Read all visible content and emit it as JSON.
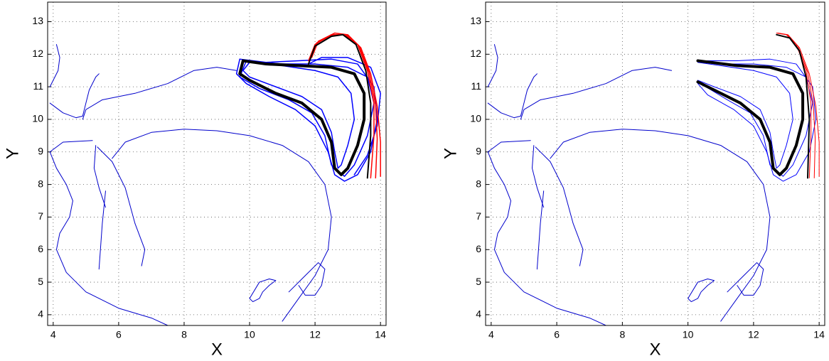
{
  "chart_data": [
    {
      "type": "line",
      "xlabel": "X",
      "ylabel": "Y",
      "xlim": [
        3.83,
        14.17
      ],
      "ylim": [
        3.67,
        13.6
      ],
      "xticks": [
        4,
        6,
        8,
        10,
        12,
        14
      ],
      "yticks": [
        4,
        5,
        6,
        7,
        8,
        9,
        10,
        11,
        12,
        13
      ],
      "grid": true,
      "series": [
        {
          "color": "#0000cc",
          "width": 1,
          "x": [
            4.1,
            4.2,
            4.15,
            4.0,
            3.9
          ],
          "y": [
            12.3,
            11.9,
            11.5,
            11.2,
            11.0
          ]
        },
        {
          "color": "#0000cc",
          "width": 1,
          "x": [
            3.9,
            4.3,
            4.7,
            4.9,
            5.0,
            5.1,
            5.3,
            5.4
          ],
          "y": [
            10.5,
            10.2,
            10.05,
            10.1,
            10.5,
            10.9,
            11.3,
            11.4
          ]
        },
        {
          "color": "#0000cc",
          "width": 1,
          "x": [
            4.9,
            5.0,
            5.5,
            6.5,
            7.5,
            8.3,
            9.0,
            9.6
          ],
          "y": [
            10.0,
            10.3,
            10.6,
            10.8,
            11.1,
            11.5,
            11.6,
            11.5
          ]
        },
        {
          "color": "#0000cc",
          "width": 1,
          "x": [
            5.8,
            6.2,
            7.0,
            8.0,
            9.0,
            10.0,
            11.0,
            11.8,
            12.3,
            12.5,
            12.4,
            12.0,
            11.5,
            11.0
          ],
          "y": [
            8.8,
            9.3,
            9.6,
            9.7,
            9.65,
            9.5,
            9.2,
            8.7,
            8.0,
            7.0,
            6.0,
            5.2,
            4.5,
            3.8
          ]
        },
        {
          "color": "#0000cc",
          "width": 1,
          "x": [
            5.2,
            4.3,
            3.9,
            4.1,
            4.4,
            4.6,
            4.5,
            4.2,
            4.1,
            4.4,
            5.0,
            6.0,
            7.0,
            7.5
          ],
          "y": [
            9.35,
            9.3,
            9.0,
            8.5,
            8.0,
            7.5,
            7.0,
            6.5,
            6.0,
            5.3,
            4.7,
            4.2,
            3.9,
            3.67
          ]
        },
        {
          "color": "#0000cc",
          "width": 1,
          "x": [
            5.3,
            5.25,
            5.4,
            5.6
          ],
          "y": [
            9.2,
            8.5,
            7.9,
            7.3
          ]
        },
        {
          "color": "#0000cc",
          "width": 1,
          "x": [
            5.35,
            5.8,
            6.2,
            6.5,
            6.8,
            6.7
          ],
          "y": [
            9.15,
            8.7,
            7.9,
            6.8,
            6.0,
            5.5
          ]
        },
        {
          "color": "#0000cc",
          "width": 1,
          "x": [
            5.6,
            5.5,
            5.4
          ],
          "y": [
            7.8,
            6.8,
            5.4
          ]
        },
        {
          "color": "#0000cc",
          "width": 1,
          "x": [
            10.0,
            10.3,
            10.6,
            10.8,
            10.6,
            10.4,
            10.3,
            10.1,
            10.0
          ],
          "y": [
            4.5,
            5.0,
            5.1,
            5.05,
            4.9,
            4.7,
            4.5,
            4.4,
            4.5
          ]
        },
        {
          "color": "#0000cc",
          "width": 1,
          "x": [
            11.2,
            11.7,
            12.1,
            12.3,
            12.2,
            12.0,
            11.7,
            11.5
          ],
          "y": [
            4.7,
            5.2,
            5.6,
            5.4,
            4.9,
            4.6,
            4.6,
            4.9
          ]
        },
        {
          "color": "#0000ff",
          "width": 1.5,
          "x": [
            9.7,
            10.5,
            11.5,
            12.5,
            13.3,
            13.8,
            13.9,
            13.7,
            13.3,
            12.9,
            12.6,
            12.4,
            12.0,
            11.4,
            10.6,
            9.9,
            9.6,
            9.7
          ],
          "y": [
            11.85,
            11.75,
            11.8,
            11.85,
            11.7,
            11.0,
            10.0,
            9.0,
            8.3,
            8.1,
            8.3,
            9.0,
            9.8,
            10.3,
            10.7,
            11.1,
            11.4,
            11.85
          ]
        },
        {
          "color": "#0000ff",
          "width": 1.5,
          "x": [
            10.0,
            11.0,
            12.0,
            12.7,
            13.1,
            13.2,
            13.0,
            12.8,
            12.7,
            12.6,
            12.5,
            12.2,
            11.6,
            10.8,
            10.0,
            9.8,
            10.0
          ],
          "y": [
            11.75,
            11.65,
            11.5,
            11.3,
            10.8,
            10.0,
            9.2,
            8.6,
            8.5,
            9.0,
            9.6,
            10.3,
            10.7,
            11.0,
            11.3,
            11.5,
            11.75
          ]
        },
        {
          "color": "#0000ff",
          "width": 1.5,
          "x": [
            9.9,
            11.0,
            12.0,
            13.0,
            13.6,
            13.8,
            13.6,
            13.2,
            12.9,
            12.5,
            12.3,
            11.9,
            11.2,
            10.3,
            9.7,
            9.9
          ],
          "y": [
            11.8,
            11.7,
            11.7,
            11.6,
            11.3,
            10.5,
            9.5,
            8.6,
            8.25,
            8.6,
            9.5,
            10.2,
            10.6,
            10.95,
            11.3,
            11.8
          ]
        },
        {
          "color": "#0000ff",
          "width": 1.5,
          "x": [
            11.8,
            12.2,
            13.0,
            13.7,
            14.0,
            13.9,
            13.6,
            13.2
          ],
          "y": [
            11.7,
            11.9,
            11.9,
            11.6,
            10.8,
            9.8,
            8.9,
            8.3
          ]
        },
        {
          "color": "#ff0000",
          "width": 1.5,
          "x": [
            11.8,
            12.0,
            12.5,
            12.9,
            13.3,
            13.6,
            13.8,
            13.8,
            13.7
          ],
          "y": [
            11.8,
            12.3,
            12.6,
            12.6,
            12.3,
            11.5,
            10.5,
            9.5,
            8.2
          ]
        },
        {
          "color": "#ff0000",
          "width": 1.5,
          "x": [
            11.9,
            12.1,
            12.6,
            13.0,
            13.4,
            13.7,
            13.9,
            14.0,
            14.0
          ],
          "y": [
            11.9,
            12.4,
            12.65,
            12.6,
            12.2,
            11.4,
            10.4,
            9.3,
            8.25
          ]
        },
        {
          "color": "#ff0000",
          "width": 1.5,
          "x": [
            11.85,
            12.05,
            12.55,
            12.95,
            13.35,
            13.65,
            13.85,
            13.9,
            13.85
          ],
          "y": [
            11.85,
            12.35,
            12.6,
            12.6,
            12.25,
            11.45,
            10.45,
            9.4,
            8.2
          ]
        },
        {
          "color": "#000000",
          "width": 4,
          "x": [
            9.8,
            10.5,
            11.5,
            12.5,
            13.2,
            13.5,
            13.5,
            13.3,
            13.0,
            12.8,
            12.6,
            12.5,
            12.2,
            11.6,
            10.8,
            10.0,
            9.7,
            9.8
          ],
          "y": [
            11.8,
            11.7,
            11.65,
            11.6,
            11.4,
            10.8,
            10.0,
            9.2,
            8.5,
            8.3,
            8.5,
            9.3,
            10.0,
            10.5,
            10.8,
            11.2,
            11.4,
            11.8
          ]
        },
        {
          "color": "#000000",
          "width": 2,
          "x": [
            11.8,
            12.0,
            12.5,
            12.85,
            13.25,
            13.55,
            13.7,
            13.7,
            13.6
          ],
          "y": [
            11.7,
            12.25,
            12.55,
            12.6,
            12.3,
            11.5,
            10.5,
            9.5,
            8.2
          ]
        }
      ]
    },
    {
      "type": "line",
      "xlabel": "X",
      "ylabel": "Y",
      "xlim": [
        3.83,
        14.17
      ],
      "ylim": [
        3.67,
        13.6
      ],
      "xticks": [
        4,
        6,
        8,
        10,
        12,
        14
      ],
      "yticks": [
        4,
        5,
        6,
        7,
        8,
        9,
        10,
        11,
        12,
        13
      ],
      "grid": true,
      "series": [
        {
          "color": "#0000cc",
          "width": 1,
          "x": [
            4.1,
            4.2,
            4.15,
            4.0,
            3.9
          ],
          "y": [
            12.3,
            11.9,
            11.5,
            11.2,
            11.0
          ]
        },
        {
          "color": "#0000cc",
          "width": 1,
          "x": [
            3.9,
            4.3,
            4.7,
            4.9,
            5.0,
            5.1,
            5.3,
            5.4
          ],
          "y": [
            10.5,
            10.2,
            10.05,
            10.1,
            10.5,
            10.9,
            11.3,
            11.4
          ]
        },
        {
          "color": "#0000cc",
          "width": 1,
          "x": [
            4.9,
            5.0,
            5.5,
            6.5,
            7.5,
            8.3,
            9.0,
            9.5
          ],
          "y": [
            10.0,
            10.3,
            10.6,
            10.8,
            11.1,
            11.5,
            11.6,
            11.5
          ]
        },
        {
          "color": "#0000cc",
          "width": 1,
          "x": [
            5.8,
            6.2,
            7.0,
            8.0,
            9.0,
            10.0,
            11.0,
            11.8,
            12.3,
            12.5,
            12.4,
            12.0,
            11.5,
            11.0
          ],
          "y": [
            8.8,
            9.3,
            9.6,
            9.7,
            9.65,
            9.5,
            9.2,
            8.7,
            8.0,
            7.0,
            6.0,
            5.2,
            4.5,
            3.8
          ]
        },
        {
          "color": "#0000cc",
          "width": 1,
          "x": [
            5.2,
            4.3,
            3.9,
            4.1,
            4.4,
            4.6,
            4.5,
            4.2,
            4.1,
            4.4,
            5.0,
            6.0,
            7.0,
            7.5
          ],
          "y": [
            9.35,
            9.3,
            9.0,
            8.5,
            8.0,
            7.5,
            7.0,
            6.5,
            6.0,
            5.3,
            4.7,
            4.2,
            3.9,
            3.67
          ]
        },
        {
          "color": "#0000cc",
          "width": 1,
          "x": [
            5.3,
            5.25,
            5.4,
            5.6
          ],
          "y": [
            9.2,
            8.5,
            7.9,
            7.3
          ]
        },
        {
          "color": "#0000cc",
          "width": 1,
          "x": [
            5.35,
            5.8,
            6.2,
            6.5,
            6.8,
            6.7
          ],
          "y": [
            9.15,
            8.7,
            7.9,
            6.8,
            6.0,
            5.5
          ]
        },
        {
          "color": "#0000cc",
          "width": 1,
          "x": [
            5.6,
            5.5,
            5.4
          ],
          "y": [
            7.8,
            6.8,
            5.4
          ]
        },
        {
          "color": "#0000cc",
          "width": 1,
          "x": [
            10.0,
            10.3,
            10.6,
            10.8,
            10.6,
            10.4,
            10.3,
            10.1,
            10.0
          ],
          "y": [
            4.5,
            5.0,
            5.1,
            5.05,
            4.9,
            4.7,
            4.5,
            4.4,
            4.5
          ]
        },
        {
          "color": "#0000cc",
          "width": 1,
          "x": [
            11.2,
            11.7,
            12.1,
            12.3,
            12.2,
            12.0,
            11.7,
            11.5
          ],
          "y": [
            4.7,
            5.2,
            5.6,
            5.4,
            4.9,
            4.6,
            4.6,
            4.9
          ]
        },
        {
          "color": "#0000ff",
          "width": 1,
          "x": [
            10.3,
            11.5,
            12.5,
            13.3,
            13.8,
            13.9,
            13.7,
            13.3,
            12.9,
            12.6,
            12.4,
            12.0,
            11.4,
            10.6,
            10.3
          ],
          "y": [
            11.8,
            11.8,
            11.85,
            11.7,
            11.0,
            10.0,
            9.0,
            8.3,
            8.1,
            8.3,
            9.0,
            9.8,
            10.3,
            10.75,
            11.1
          ]
        },
        {
          "color": "#0000ff",
          "width": 1,
          "x": [
            10.3,
            11.0,
            12.0,
            12.7,
            13.1,
            13.2,
            13.0,
            12.8,
            12.7,
            12.6,
            12.5,
            12.2,
            11.6,
            10.8,
            10.3
          ],
          "y": [
            11.75,
            11.65,
            11.5,
            11.3,
            10.8,
            10.0,
            9.2,
            8.6,
            8.5,
            9.0,
            9.6,
            10.3,
            10.7,
            11.0,
            11.2
          ]
        },
        {
          "color": "#0000ff",
          "width": 1,
          "x": [
            10.3,
            11.0,
            12.0,
            13.0,
            13.6,
            13.8,
            13.6,
            13.2,
            12.9,
            12.5,
            12.3,
            11.9,
            11.2,
            10.3
          ],
          "y": [
            11.8,
            11.7,
            11.7,
            11.6,
            11.3,
            10.5,
            9.5,
            8.6,
            8.25,
            8.6,
            9.5,
            10.2,
            10.6,
            11.15
          ]
        },
        {
          "color": "#ff0000",
          "width": 1,
          "x": [
            12.7,
            13.0,
            13.3,
            13.6,
            13.75,
            13.75,
            13.7
          ],
          "y": [
            12.65,
            12.6,
            12.3,
            11.5,
            10.5,
            9.5,
            8.2
          ]
        },
        {
          "color": "#ff0000",
          "width": 1,
          "x": [
            12.75,
            13.05,
            13.4,
            13.7,
            13.9,
            14.0,
            14.0
          ],
          "y": [
            12.65,
            12.6,
            12.2,
            11.4,
            10.4,
            9.3,
            8.25
          ]
        },
        {
          "color": "#ff0000",
          "width": 1,
          "x": [
            12.72,
            13.02,
            13.35,
            13.65,
            13.82,
            13.88,
            13.85
          ],
          "y": [
            12.65,
            12.6,
            12.25,
            11.45,
            10.45,
            9.4,
            8.2
          ]
        },
        {
          "color": "#000000",
          "width": 4,
          "x": [
            10.3,
            11.5,
            12.5,
            13.2,
            13.5,
            13.5,
            13.3,
            13.0,
            12.8,
            12.6,
            12.5,
            12.2,
            11.6,
            10.8,
            10.3
          ],
          "y": [
            11.8,
            11.65,
            11.6,
            11.4,
            10.8,
            10.0,
            9.2,
            8.5,
            8.3,
            8.5,
            9.3,
            10.0,
            10.5,
            10.9,
            11.15
          ]
        },
        {
          "color": "#000000",
          "width": 2,
          "x": [
            12.7,
            13.1,
            13.4,
            13.6,
            13.7,
            13.65
          ],
          "y": [
            12.6,
            12.5,
            12.1,
            11.3,
            10.0,
            8.2
          ]
        }
      ]
    }
  ]
}
